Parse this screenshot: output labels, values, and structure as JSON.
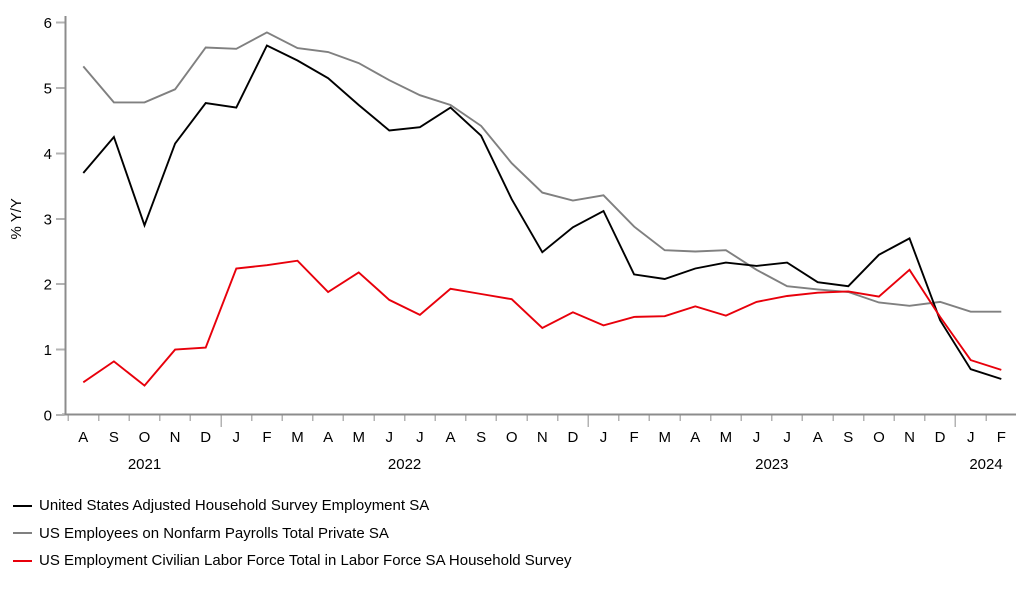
{
  "chart_data": {
    "type": "line",
    "title": "",
    "xlabel": "",
    "ylabel": "% Y/Y",
    "ylim": [
      0,
      6
    ],
    "yticks": [
      0,
      1,
      2,
      3,
      4,
      5,
      6
    ],
    "grid": false,
    "legend_position": "bottom-left",
    "axis_color": "#8c8c8c",
    "tick_color": "#b3b3b3",
    "x_unit": "month",
    "x_labels": [
      "A",
      "S",
      "O",
      "N",
      "D",
      "J",
      "F",
      "M",
      "A",
      "M",
      "J",
      "J",
      "A",
      "S",
      "O",
      "N",
      "D",
      "J",
      "F",
      "M",
      "A",
      "M",
      "J",
      "J",
      "A",
      "S",
      "O",
      "N",
      "D",
      "J",
      "F"
    ],
    "years": [
      {
        "label": "2021",
        "start_index": 0,
        "end_index": 4
      },
      {
        "label": "2022",
        "start_index": 5,
        "end_index": 16
      },
      {
        "label": "2023",
        "start_index": 17,
        "end_index": 28
      },
      {
        "label": "2024",
        "start_index": 29,
        "end_index": 30
      }
    ],
    "series": [
      {
        "name": "United States Adjusted Household Survey Employment SA",
        "color": "#000000",
        "values": [
          3.7,
          4.25,
          2.9,
          4.15,
          4.77,
          4.7,
          5.65,
          5.42,
          5.15,
          4.74,
          4.35,
          4.4,
          4.7,
          4.27,
          3.3,
          2.49,
          2.87,
          3.12,
          2.15,
          2.08,
          2.24,
          2.33,
          2.28,
          2.33,
          2.03,
          1.97,
          2.45,
          2.7,
          1.45,
          0.7,
          0.55
        ]
      },
      {
        "name": "US Employees on Nonfarm Payrolls Total Private SA",
        "color": "#808080",
        "values": [
          5.33,
          4.78,
          4.78,
          4.98,
          5.62,
          5.6,
          5.85,
          5.61,
          5.55,
          5.38,
          5.12,
          4.89,
          4.74,
          4.42,
          3.85,
          3.4,
          3.28,
          3.36,
          2.88,
          2.52,
          2.5,
          2.52,
          2.22,
          1.97,
          1.92,
          1.88,
          1.72,
          1.67,
          1.73,
          1.58,
          1.58
        ]
      },
      {
        "name": "US Employment Civilian Labor Force Total in Labor Force SA Household Survey",
        "color": "#e8000b",
        "values": [
          0.5,
          0.82,
          0.45,
          1.0,
          1.03,
          2.24,
          2.29,
          2.36,
          1.88,
          2.18,
          1.76,
          1.53,
          1.93,
          1.85,
          1.77,
          1.33,
          1.57,
          1.37,
          1.5,
          1.51,
          1.66,
          1.52,
          1.73,
          1.82,
          1.87,
          1.89,
          1.81,
          2.22,
          1.5,
          0.84,
          0.69
        ]
      }
    ]
  }
}
